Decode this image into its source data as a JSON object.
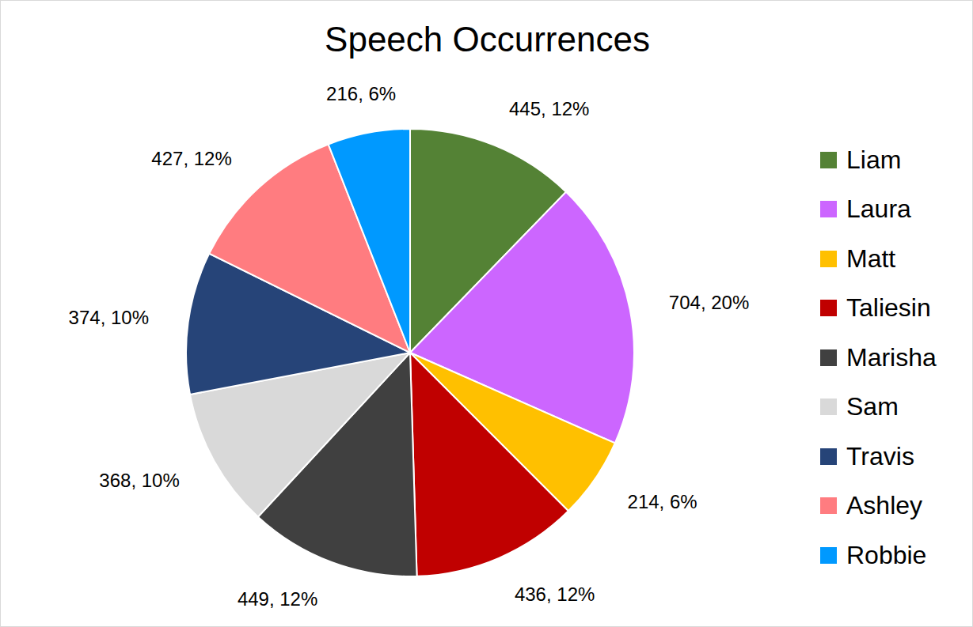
{
  "chart_data": {
    "type": "pie",
    "title": "Speech Occurrences",
    "categories": [
      "Liam",
      "Laura",
      "Matt",
      "Taliesin",
      "Marisha",
      "Sam",
      "Travis",
      "Ashley",
      "Robbie"
    ],
    "values": [
      445,
      704,
      214,
      436,
      449,
      368,
      374,
      427,
      216
    ],
    "value_labels": [
      "445, 12%",
      "704, 20%",
      "214, 6%",
      "436, 12%",
      "449, 12%",
      "368, 10%",
      "374, 10%",
      "427, 12%",
      "216, 6%"
    ],
    "colors": [
      "#548235",
      "#cc66ff",
      "#ffc000",
      "#c00000",
      "#404040",
      "#d9d9d9",
      "#264478",
      "#ff7c80",
      "#0099ff"
    ],
    "data_labels": true,
    "legend": "right"
  }
}
